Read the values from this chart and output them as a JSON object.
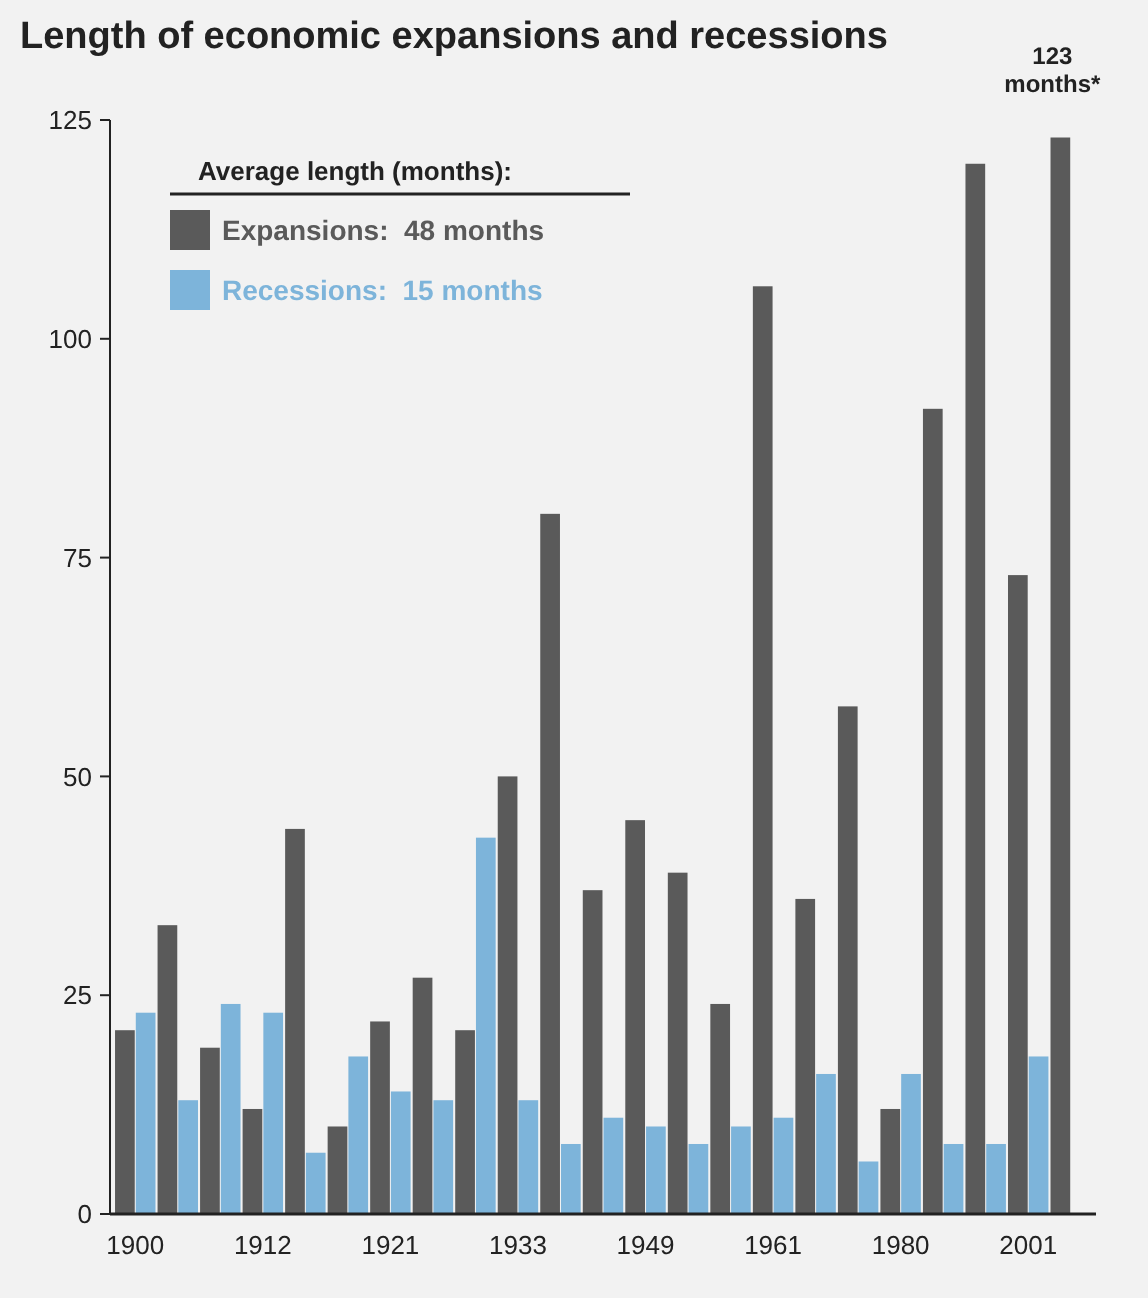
{
  "chart_data": {
    "type": "bar",
    "title": "Length of economic expansions and recessions",
    "categories": [
      "1900",
      null,
      null,
      "1912",
      null,
      null,
      "1921",
      null,
      null,
      "1933",
      null,
      null,
      "1949",
      null,
      null,
      "1961",
      null,
      null,
      "1980",
      null,
      null,
      "2001",
      null
    ],
    "series": [
      {
        "name": "Expansions:  48 months",
        "color": "#5a5a5a",
        "values": [
          21,
          33,
          19,
          12,
          44,
          10,
          22,
          27,
          21,
          50,
          80,
          37,
          45,
          39,
          24,
          106,
          36,
          58,
          12,
          92,
          120,
          73,
          123
        ]
      },
      {
        "name": "Recessions:  15 months",
        "color": "#7db4da",
        "values": [
          23,
          13,
          24,
          23,
          7,
          18,
          14,
          13,
          43,
          13,
          8,
          11,
          10,
          8,
          10,
          11,
          16,
          6,
          16,
          8,
          8,
          18,
          null
        ]
      }
    ],
    "legend_title": "Average length (months):",
    "legend": "top left",
    "ylim": [
      0,
      125
    ],
    "yticks": [
      0,
      25,
      50,
      75,
      100,
      125
    ],
    "grid": false,
    "annotations": [
      "123 months*"
    ]
  }
}
